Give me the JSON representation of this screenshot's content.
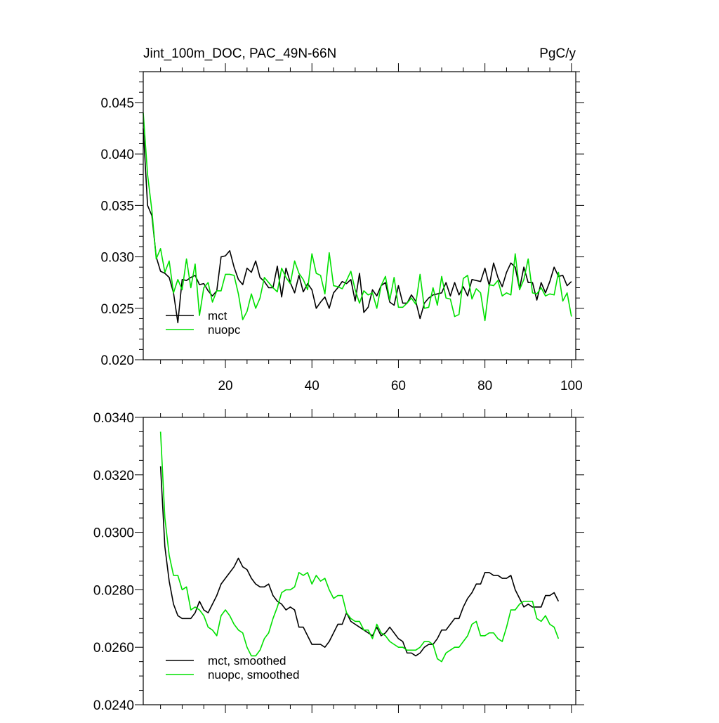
{
  "chart_data": [
    {
      "type": "line",
      "title": "Jint_100m_DOC, PAC_49N-66N",
      "units_label": "PgC/y",
      "x": [
        1,
        2,
        3,
        4,
        5,
        6,
        7,
        8,
        9,
        10,
        11,
        12,
        13,
        14,
        15,
        16,
        17,
        18,
        19,
        20,
        21,
        22,
        23,
        24,
        25,
        26,
        27,
        28,
        29,
        30,
        31,
        32,
        33,
        34,
        35,
        36,
        37,
        38,
        39,
        40,
        41,
        42,
        43,
        44,
        45,
        46,
        47,
        48,
        49,
        50,
        51,
        52,
        53,
        54,
        55,
        56,
        57,
        58,
        59,
        60,
        61,
        62,
        63,
        64,
        65,
        66,
        67,
        68,
        69,
        70,
        71,
        72,
        73,
        74,
        75,
        76,
        77,
        78,
        79,
        80,
        81,
        82,
        83,
        84,
        85,
        86,
        87,
        88,
        89,
        90,
        91,
        92,
        93,
        94,
        95,
        96,
        97,
        98,
        99,
        100
      ],
      "series": [
        {
          "name": "mct",
          "color": "#000000",
          "values": [
            0.0425,
            0.035,
            0.034,
            0.03,
            0.0286,
            0.0284,
            0.028,
            0.0265,
            0.0236,
            0.0278,
            0.0277,
            0.028,
            0.0282,
            0.0273,
            0.0274,
            0.0267,
            0.0262,
            0.0267,
            0.03,
            0.0301,
            0.0306,
            0.029,
            0.0278,
            0.0273,
            0.0289,
            0.0285,
            0.0296,
            0.028,
            0.0276,
            0.027,
            0.027,
            0.0291,
            0.0261,
            0.0289,
            0.0275,
            0.0265,
            0.0282,
            0.0266,
            0.0274,
            0.0268,
            0.025,
            0.0256,
            0.0261,
            0.025,
            0.0265,
            0.027,
            0.0276,
            0.0274,
            0.0278,
            0.0257,
            0.0284,
            0.0246,
            0.0251,
            0.0268,
            0.0262,
            0.0272,
            0.0275,
            0.0256,
            0.0253,
            0.0272,
            0.0255,
            0.0255,
            0.0263,
            0.0257,
            0.024,
            0.0255,
            0.026,
            0.0263,
            0.0264,
            0.0265,
            0.0275,
            0.0262,
            0.0275,
            0.0263,
            0.0271,
            0.0262,
            0.0278,
            0.0277,
            0.0276,
            0.0289,
            0.0272,
            0.0294,
            0.028,
            0.0271,
            0.0285,
            0.0294,
            0.029,
            0.0269,
            0.029,
            0.0275,
            0.0275,
            0.0258,
            0.0275,
            0.0265,
            0.0276,
            0.029,
            0.0281,
            0.0282,
            0.0272,
            0.0276
          ]
        },
        {
          "name": "nuopc",
          "color": "#00e000",
          "values": [
            0.044,
            0.038,
            0.0345,
            0.0298,
            0.0308,
            0.0285,
            0.0296,
            0.0265,
            0.0278,
            0.0268,
            0.0298,
            0.027,
            0.0293,
            0.0243,
            0.027,
            0.0275,
            0.0256,
            0.0267,
            0.0267,
            0.0283,
            0.0283,
            0.0282,
            0.0264,
            0.0239,
            0.0247,
            0.0264,
            0.025,
            0.026,
            0.028,
            0.0275,
            0.027,
            0.0266,
            0.0289,
            0.028,
            0.0274,
            0.0296,
            0.0284,
            0.0278,
            0.0268,
            0.0303,
            0.0284,
            0.0282,
            0.0264,
            0.0304,
            0.0272,
            0.0271,
            0.0269,
            0.0277,
            0.0286,
            0.0268,
            0.0255,
            0.0267,
            0.0263,
            0.0265,
            0.025,
            0.0272,
            0.0281,
            0.0258,
            0.028,
            0.0251,
            0.0251,
            0.0255,
            0.026,
            0.0254,
            0.0283,
            0.025,
            0.0251,
            0.027,
            0.0253,
            0.0281,
            0.026,
            0.0259,
            0.0242,
            0.0244,
            0.0279,
            0.0282,
            0.0259,
            0.0269,
            0.0265,
            0.0238,
            0.0273,
            0.0272,
            0.0277,
            0.0262,
            0.0265,
            0.0263,
            0.0303,
            0.0268,
            0.0278,
            0.0298,
            0.0265,
            0.0264,
            0.027,
            0.0262,
            0.0264,
            0.0263,
            0.0285,
            0.0257,
            0.0265,
            0.0242
          ]
        }
      ],
      "xlim": [
        1,
        101
      ],
      "xticks": [
        20,
        40,
        60,
        80,
        100
      ],
      "show_xtick_labels": true,
      "xminor": 4,
      "ylim": [
        0.02,
        0.048
      ],
      "yticks": [
        {
          "value": 0.02,
          "label": "0.020"
        },
        0.025,
        {
          "value": 0.03,
          "label": "0.030"
        },
        0.035,
        {
          "value": 0.04,
          "label": "0.040"
        },
        0.045
      ],
      "yminor": 5,
      "legend": "lower left"
    },
    {
      "type": "line",
      "x": [
        5,
        6,
        7,
        8,
        9,
        10,
        11,
        12,
        13,
        14,
        15,
        16,
        17,
        18,
        19,
        20,
        21,
        22,
        23,
        24,
        25,
        26,
        27,
        28,
        29,
        30,
        31,
        32,
        33,
        34,
        35,
        36,
        37,
        38,
        39,
        40,
        41,
        42,
        43,
        44,
        45,
        46,
        47,
        48,
        49,
        50,
        51,
        52,
        53,
        54,
        55,
        56,
        57,
        58,
        59,
        60,
        61,
        62,
        63,
        64,
        65,
        66,
        67,
        68,
        69,
        70,
        71,
        72,
        73,
        74,
        75,
        76,
        77,
        78,
        79,
        80,
        81,
        82,
        83,
        84,
        85,
        86,
        87,
        88,
        89,
        90,
        91,
        92,
        93,
        94,
        95,
        96,
        97
      ],
      "series": [
        {
          "name": "mct, smoothed",
          "color": "#000000",
          "values": [
            0.0323,
            0.0295,
            0.0283,
            0.0275,
            0.0271,
            0.027,
            0.027,
            0.027,
            0.0272,
            0.0276,
            0.0273,
            0.0272,
            0.0275,
            0.0278,
            0.0282,
            0.0284,
            0.0286,
            0.0288,
            0.0291,
            0.0288,
            0.0287,
            0.0284,
            0.0282,
            0.0281,
            0.0281,
            0.0282,
            0.0278,
            0.0276,
            0.0275,
            0.0273,
            0.0274,
            0.0273,
            0.0267,
            0.0267,
            0.0264,
            0.0261,
            0.0261,
            0.0261,
            0.026,
            0.0262,
            0.0265,
            0.0268,
            0.0268,
            0.0272,
            0.0269,
            0.0268,
            0.0267,
            0.0266,
            0.0265,
            0.0264,
            0.0267,
            0.0264,
            0.0265,
            0.0267,
            0.0265,
            0.0263,
            0.0262,
            0.0258,
            0.0258,
            0.0257,
            0.0258,
            0.026,
            0.0261,
            0.0261,
            0.0263,
            0.0266,
            0.0266,
            0.0268,
            0.027,
            0.027,
            0.0274,
            0.0277,
            0.0279,
            0.0282,
            0.0282,
            0.0286,
            0.0286,
            0.0285,
            0.0285,
            0.0284,
            0.0284,
            0.0285,
            0.028,
            0.0277,
            0.0274,
            0.0275,
            0.0274,
            0.0274,
            0.0274,
            0.0278,
            0.0278,
            0.0279,
            0.0276
          ]
        },
        {
          "name": "nuopc, smoothed",
          "color": "#00e000",
          "values": [
            0.0335,
            0.0305,
            0.0292,
            0.0285,
            0.0285,
            0.028,
            0.0281,
            0.0273,
            0.0274,
            0.0273,
            0.0271,
            0.0267,
            0.0266,
            0.0264,
            0.0271,
            0.0273,
            0.0271,
            0.0268,
            0.0266,
            0.0265,
            0.026,
            0.0257,
            0.0257,
            0.0259,
            0.0263,
            0.0265,
            0.027,
            0.0274,
            0.0279,
            0.028,
            0.028,
            0.0281,
            0.0286,
            0.0285,
            0.0286,
            0.0282,
            0.0285,
            0.0283,
            0.0284,
            0.028,
            0.0277,
            0.0278,
            0.0278,
            0.0272,
            0.027,
            0.0269,
            0.0269,
            0.0266,
            0.0266,
            0.0263,
            0.0268,
            0.0265,
            0.0264,
            0.0262,
            0.0261,
            0.026,
            0.026,
            0.0259,
            0.0259,
            0.0259,
            0.026,
            0.0262,
            0.0262,
            0.0261,
            0.0256,
            0.0255,
            0.0258,
            0.0259,
            0.026,
            0.026,
            0.0262,
            0.0264,
            0.0268,
            0.0269,
            0.0264,
            0.0264,
            0.0265,
            0.0265,
            0.0263,
            0.0262,
            0.0267,
            0.0273,
            0.0273,
            0.0275,
            0.0276,
            0.0276,
            0.0276,
            0.027,
            0.0269,
            0.0271,
            0.0268,
            0.0267,
            0.0263
          ]
        }
      ],
      "xlim": [
        1,
        101
      ],
      "xticks": [
        20,
        40,
        60,
        80,
        100
      ],
      "show_xtick_labels": false,
      "xminor": 4,
      "ylim": [
        0.024,
        0.034
      ],
      "yticks": [
        {
          "value": 0.024,
          "label": "0.0240"
        },
        {
          "value": 0.026,
          "label": "0.0260"
        },
        {
          "value": 0.028,
          "label": "0.0280"
        },
        {
          "value": 0.03,
          "label": "0.0300"
        },
        {
          "value": 0.032,
          "label": "0.0320"
        },
        {
          "value": 0.034,
          "label": "0.0340"
        }
      ],
      "yminor": 4,
      "legend": "lower left"
    }
  ]
}
